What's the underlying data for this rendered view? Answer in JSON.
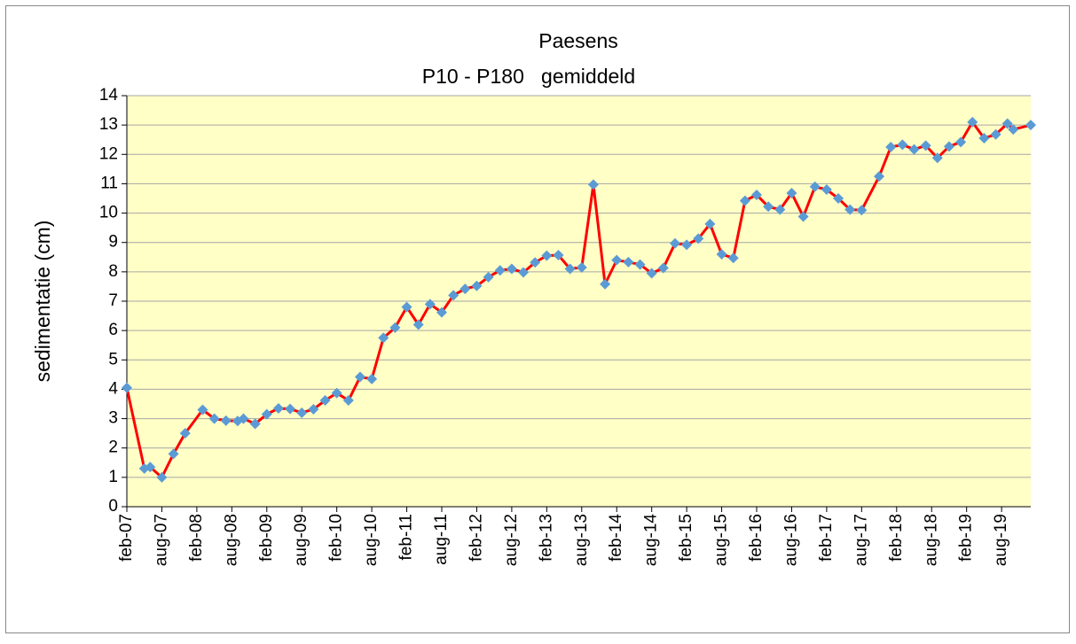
{
  "chart_data": {
    "type": "line",
    "title": "Paesens",
    "subtitle": "P10 - P180   gemiddeld",
    "y_label": "sedimentatie (cm)",
    "x": [
      "2007-02",
      "2007-05",
      "2007-06",
      "2007-08",
      "2007-10",
      "2007-12",
      "2008-03",
      "2008-05",
      "2008-07",
      "2008-09",
      "2008-10",
      "2008-12",
      "2009-02",
      "2009-04",
      "2009-06",
      "2009-08",
      "2009-10",
      "2009-12",
      "2010-02",
      "2010-04",
      "2010-06",
      "2010-08",
      "2010-10",
      "2010-12",
      "2011-02",
      "2011-04",
      "2011-06",
      "2011-08",
      "2011-10",
      "2011-12",
      "2012-02",
      "2012-04",
      "2012-06",
      "2012-08",
      "2012-10",
      "2012-12",
      "2013-02",
      "2013-04",
      "2013-06",
      "2013-08",
      "2013-10",
      "2013-12",
      "2014-02",
      "2014-04",
      "2014-06",
      "2014-08",
      "2014-10",
      "2014-12",
      "2015-02",
      "2015-04",
      "2015-06",
      "2015-08",
      "2015-10",
      "2015-12",
      "2016-02",
      "2016-04",
      "2016-06",
      "2016-08",
      "2016-10",
      "2016-12",
      "2017-02",
      "2017-04",
      "2017-06",
      "2017-08",
      "2017-11",
      "2018-01",
      "2018-03",
      "2018-05",
      "2018-07",
      "2018-09",
      "2018-11",
      "2019-01",
      "2019-03",
      "2019-05",
      "2019-07",
      "2019-09",
      "2019-10",
      "2020-01"
    ],
    "values": [
      4.05,
      1.3,
      1.35,
      1.0,
      1.8,
      2.5,
      3.3,
      3.0,
      2.93,
      2.92,
      3.0,
      2.82,
      3.15,
      3.35,
      3.33,
      3.2,
      3.32,
      3.62,
      3.87,
      3.62,
      4.42,
      4.35,
      5.75,
      6.1,
      6.8,
      6.2,
      6.9,
      6.62,
      7.2,
      7.42,
      7.52,
      7.82,
      8.05,
      8.1,
      7.98,
      8.32,
      8.55,
      8.57,
      8.1,
      8.15,
      10.97,
      7.58,
      8.4,
      8.33,
      8.25,
      7.95,
      8.13,
      8.97,
      8.92,
      9.13,
      9.63,
      8.6,
      8.47,
      10.42,
      10.62,
      10.22,
      10.12,
      10.68,
      9.88,
      10.9,
      10.8,
      10.5,
      10.12,
      10.1,
      11.25,
      12.25,
      12.33,
      12.17,
      12.3,
      11.88,
      12.27,
      12.42,
      13.1,
      12.55,
      12.68,
      13.05,
      12.85,
      13.0
    ],
    "line_color": "#ff0000",
    "marker_color": "#5b9bd5",
    "background": "#ffffc6",
    "xlim": [
      "2007-02",
      "2020-01"
    ],
    "xticks": [
      {
        "value": "2007-02",
        "label": "feb-07"
      },
      {
        "value": "2007-08",
        "label": "aug-07"
      },
      {
        "value": "2008-02",
        "label": "feb-08"
      },
      {
        "value": "2008-08",
        "label": "aug-08"
      },
      {
        "value": "2009-02",
        "label": "feb-09"
      },
      {
        "value": "2009-08",
        "label": "aug-09"
      },
      {
        "value": "2010-02",
        "label": "feb-10"
      },
      {
        "value": "2010-08",
        "label": "aug-10"
      },
      {
        "value": "2011-02",
        "label": "feb-11"
      },
      {
        "value": "2011-08",
        "label": "aug-11"
      },
      {
        "value": "2012-02",
        "label": "feb-12"
      },
      {
        "value": "2012-08",
        "label": "aug-12"
      },
      {
        "value": "2013-02",
        "label": "feb-13"
      },
      {
        "value": "2013-08",
        "label": "aug-13"
      },
      {
        "value": "2014-02",
        "label": "feb-14"
      },
      {
        "value": "2014-08",
        "label": "aug-14"
      },
      {
        "value": "2015-02",
        "label": "feb-15"
      },
      {
        "value": "2015-08",
        "label": "aug-15"
      },
      {
        "value": "2016-02",
        "label": "feb-16"
      },
      {
        "value": "2016-08",
        "label": "aug-16"
      },
      {
        "value": "2017-02",
        "label": "feb-17"
      },
      {
        "value": "2017-08",
        "label": "aug-17"
      },
      {
        "value": "2018-02",
        "label": "feb-18"
      },
      {
        "value": "2018-08",
        "label": "aug-18"
      },
      {
        "value": "2019-02",
        "label": "feb-19"
      },
      {
        "value": "2019-08",
        "label": "aug-19"
      }
    ],
    "ylim": [
      0,
      14
    ],
    "yticks": [
      0,
      1,
      2,
      3,
      4,
      5,
      6,
      7,
      8,
      9,
      10,
      11,
      12,
      13,
      14
    ],
    "grid": true
  }
}
